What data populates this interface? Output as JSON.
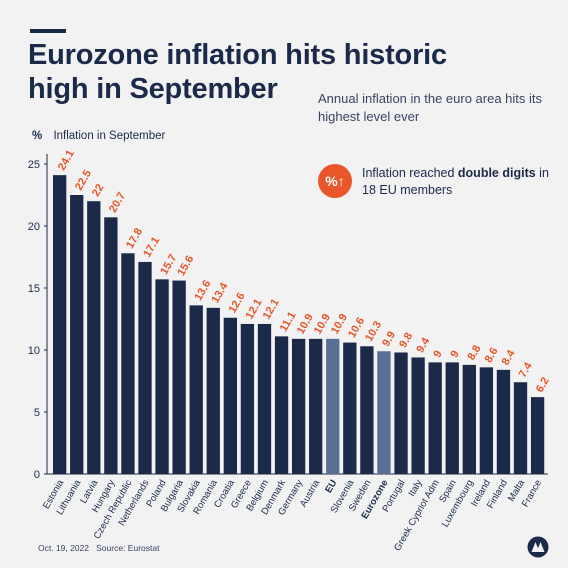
{
  "header": {
    "title_line1": "Eurozone inflation hits historic",
    "title_line2": "high in September",
    "subtitle": "Annual inflation in the euro area hits its highest level ever"
  },
  "callout": {
    "icon_text": "%↑",
    "text_pre": "Inflation reached ",
    "text_bold": "double digits",
    "text_post": " in 18 EU members"
  },
  "footer": {
    "date": "Oct. 19, 2022",
    "source": "Source: Eurostat"
  },
  "colors": {
    "bar": "#1c2a4a",
    "bar_highlight": "#5b6f95",
    "label": "#e8562a",
    "axis": "#1c2a4a",
    "grid": "#cfcfcf"
  },
  "chart_data": {
    "type": "bar",
    "ylabel_unit": "%",
    "ylabel": "Inflation in September",
    "ylim": [
      0,
      25
    ],
    "yticks": [
      0,
      5,
      10,
      15,
      20,
      25
    ],
    "grid": false,
    "categories": [
      "Estonia",
      "Lithuania",
      "Latvia",
      "Hungary",
      "Czech Republic",
      "Netherlands",
      "Poland",
      "Bulgaria",
      "Slovakia",
      "Romania",
      "Croatia",
      "Greece",
      "Belgium",
      "Denmark",
      "Germany",
      "Austria",
      "EU",
      "Slovenia",
      "Sweden",
      "Eurozone",
      "Portugal",
      "Italy",
      "Greek Cypriot Adm",
      "Spain",
      "Luxembourg",
      "Ireland",
      "Finland",
      "Malta",
      "France"
    ],
    "values": [
      24.1,
      22.5,
      22,
      20.7,
      17.8,
      17.1,
      15.7,
      15.6,
      13.6,
      13.4,
      12.6,
      12.1,
      12.1,
      11.1,
      10.9,
      10.9,
      10.9,
      10.6,
      10.3,
      9.9,
      9.8,
      9.4,
      9,
      9,
      8.8,
      8.6,
      8.4,
      7.4,
      6.2
    ],
    "highlighted": [
      "EU",
      "Eurozone"
    ],
    "bold_labels": [
      "EU",
      "Eurozone"
    ]
  }
}
